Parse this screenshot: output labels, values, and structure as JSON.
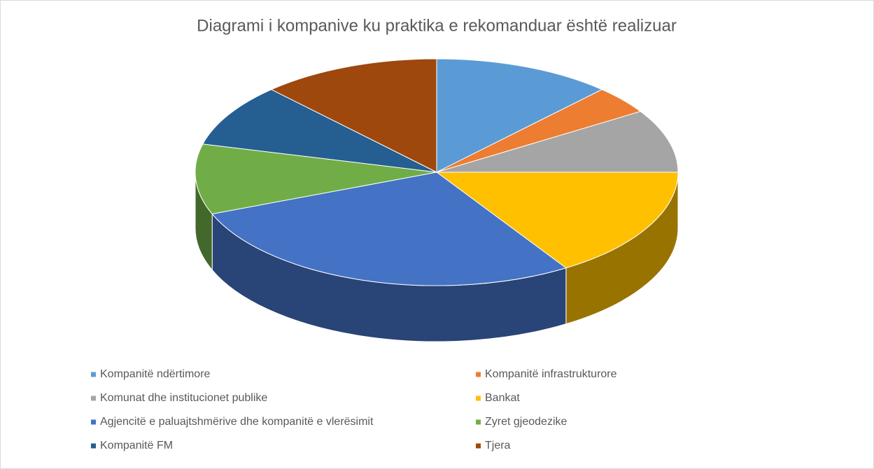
{
  "chart_data": {
    "type": "pie3d",
    "title": "Diagrami i kompanive ku praktika e rekomanduar është realizuar",
    "categories": [
      "Kompanitë ndërtimore",
      "Kompanitë infrastrukturore",
      "Komunat dhe institucionet publike",
      "Bankat",
      "Agjencitë e paluajtshmërive dhe kompanitë e vlerësimit",
      "Zyret gjeodezike",
      "Kompanitë FM",
      "Tjera"
    ],
    "values": [
      12,
      4,
      9,
      16,
      28,
      10,
      9,
      12
    ],
    "colors": [
      "#5b9bd5",
      "#ed7d31",
      "#a5a5a5",
      "#ffc000",
      "#4472c4",
      "#70ad47",
      "#255e91",
      "#9e480e"
    ],
    "legend": "bottom"
  }
}
